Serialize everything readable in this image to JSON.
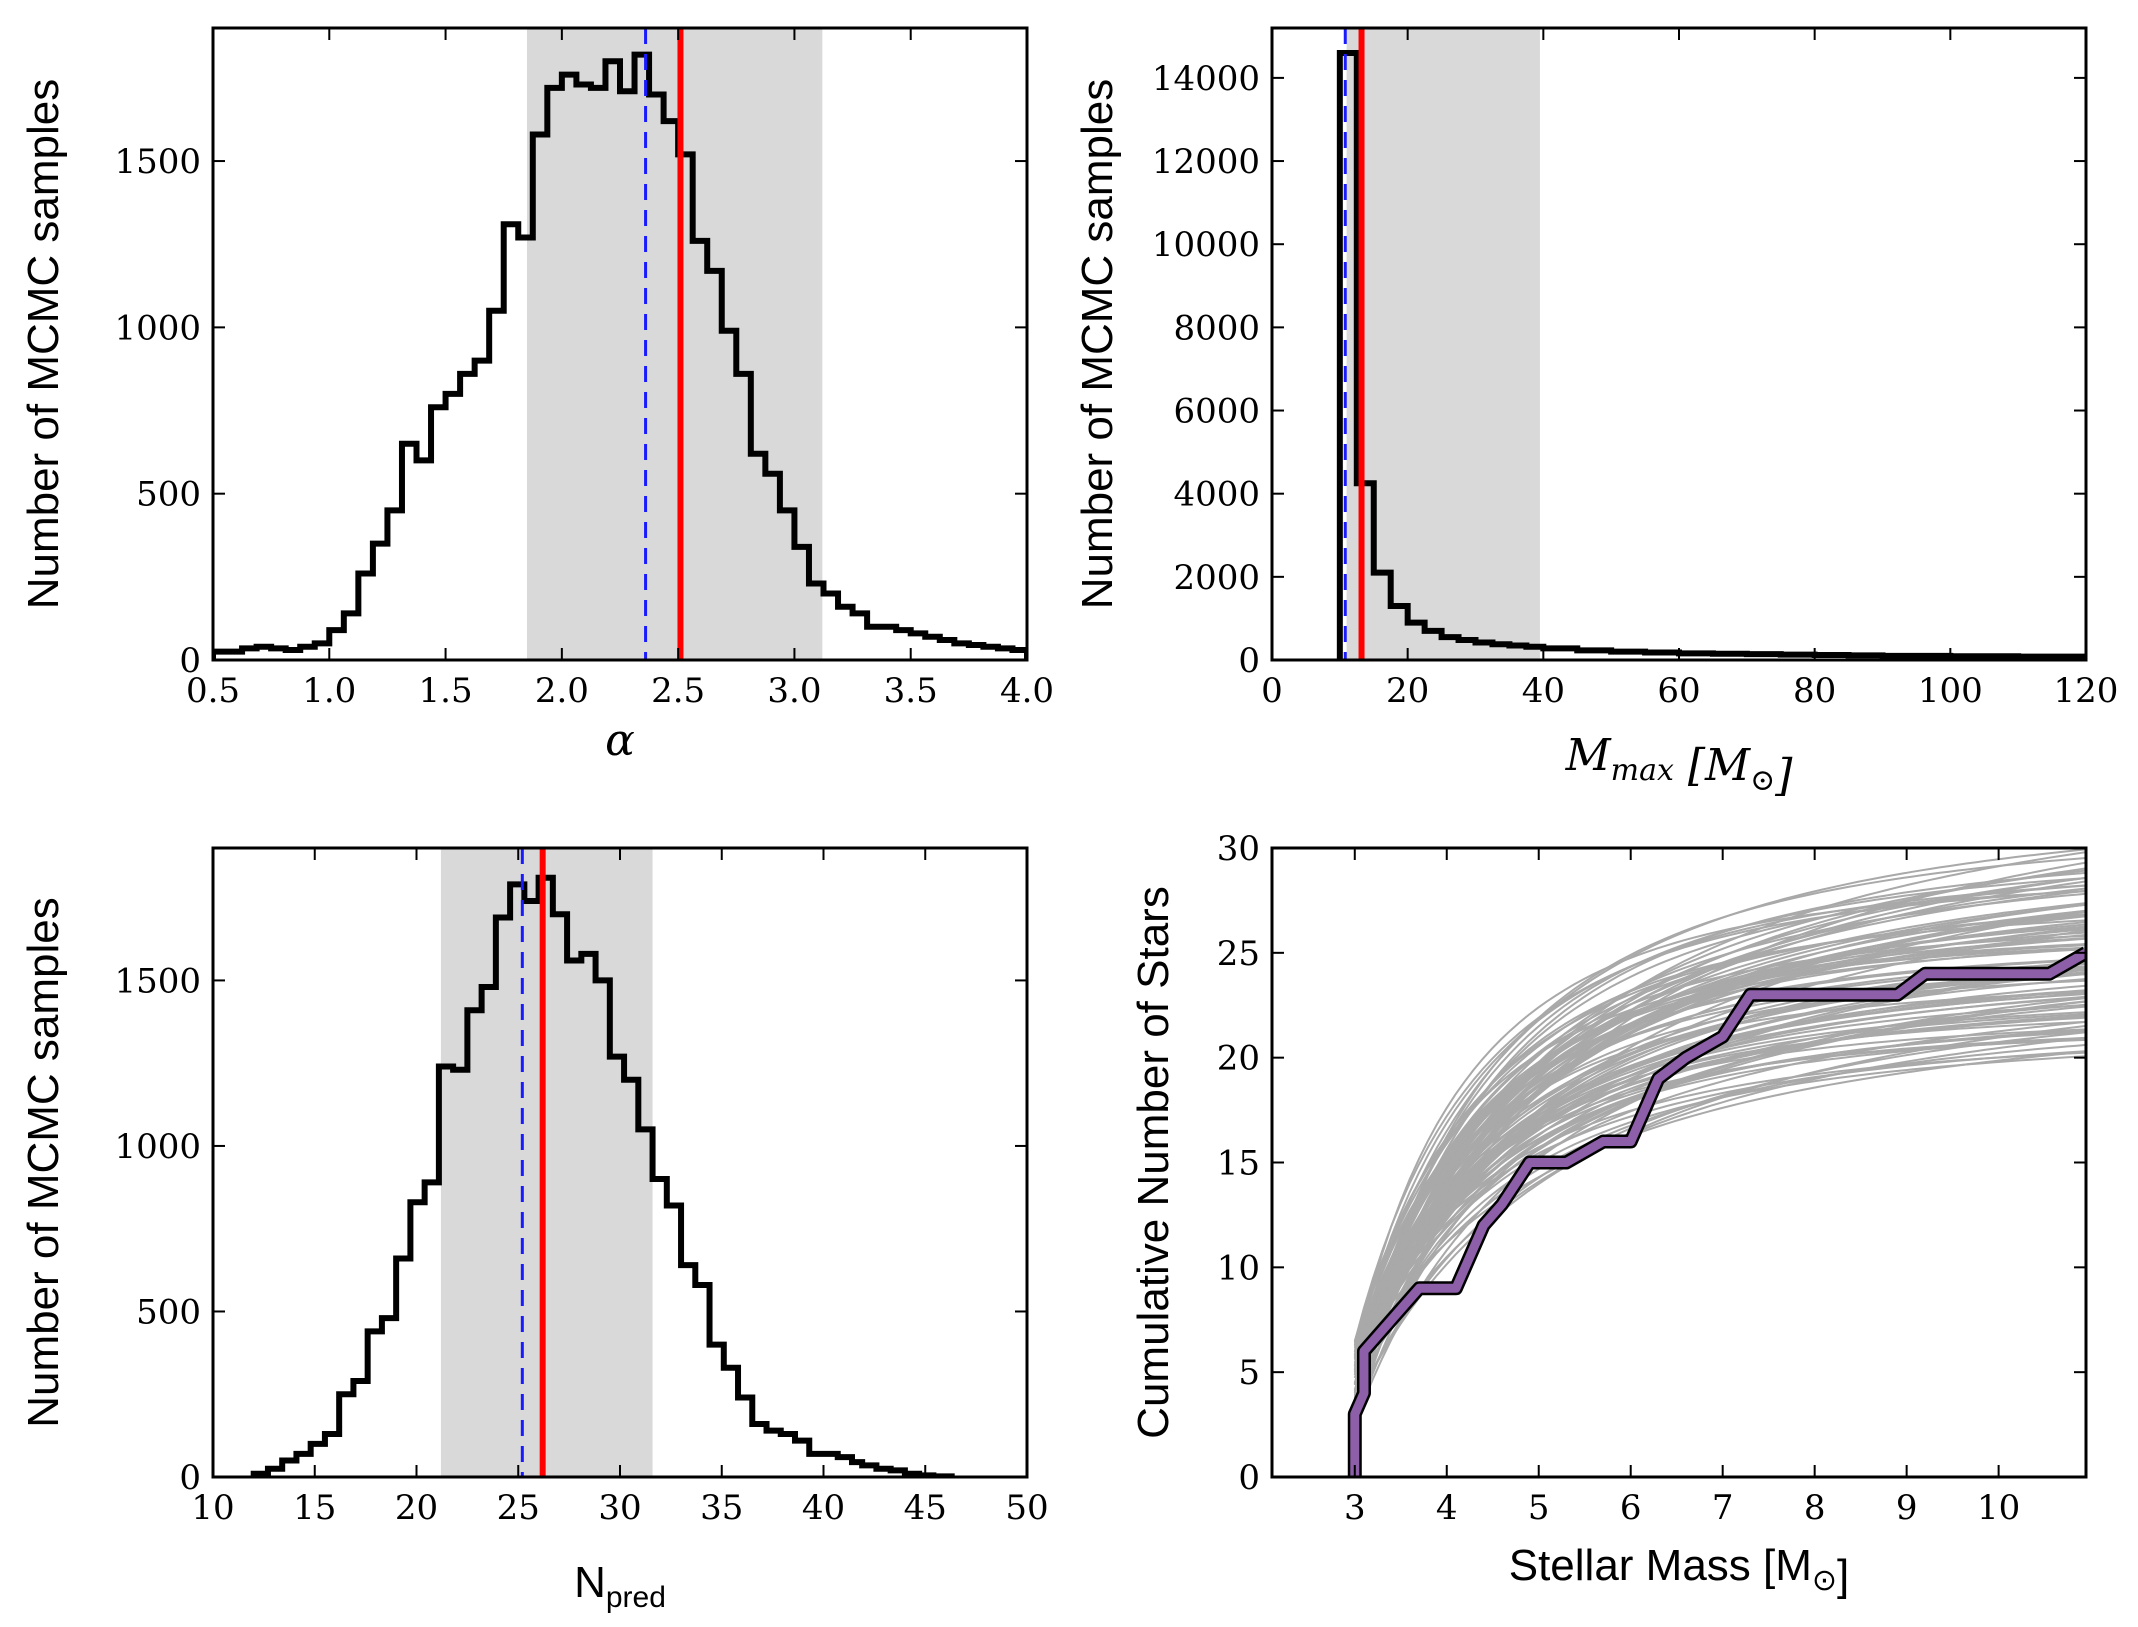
{
  "colors": {
    "hist": "#000000",
    "shade": "#d9d9d9",
    "blue_line": "#1a1aff",
    "red_line": "#ff0000",
    "observed": "#8c5fa8",
    "samples": "#a9a9a9"
  },
  "chart_data": [
    {
      "id": "alpha",
      "type": "histogram",
      "xlabel": "α",
      "ylabel": "Number of MCMC samples",
      "xlim": [
        0.5,
        4.0
      ],
      "ylim": [
        0,
        1900
      ],
      "xticks": [
        0.5,
        1.0,
        1.5,
        2.0,
        2.5,
        3.0,
        3.5,
        4.0
      ],
      "xtick_labels": [
        "0.5",
        "1.0",
        "1.5",
        "2.0",
        "2.5",
        "3.0",
        "3.5",
        "4.0"
      ],
      "yticks": [
        0,
        500,
        1000,
        1500
      ],
      "ytick_labels": [
        "0",
        "500",
        "1000",
        "1500"
      ],
      "shade": [
        1.85,
        3.12
      ],
      "blue_dashed": 2.36,
      "red": 2.51,
      "bin_edges": [
        0.5,
        0.5625,
        0.625,
        0.6875,
        0.75,
        0.8125,
        0.875,
        0.9375,
        1.0,
        1.0625,
        1.125,
        1.1875,
        1.25,
        1.3125,
        1.375,
        1.4375,
        1.5,
        1.5625,
        1.625,
        1.6875,
        1.75,
        1.8125,
        1.875,
        1.9375,
        2.0,
        2.0625,
        2.125,
        2.1875,
        2.25,
        2.3125,
        2.375,
        2.4375,
        2.5,
        2.5625,
        2.625,
        2.6875,
        2.75,
        2.8125,
        2.875,
        2.9375,
        3.0,
        3.0625,
        3.125,
        3.1875,
        3.25,
        3.3125,
        3.375,
        3.4375,
        3.5,
        3.5625,
        3.625,
        3.6875,
        3.75,
        3.8125,
        3.875,
        3.9375,
        4.0
      ],
      "counts": [
        25,
        25,
        35,
        40,
        35,
        30,
        40,
        50,
        90,
        140,
        260,
        350,
        450,
        650,
        600,
        760,
        800,
        860,
        900,
        1050,
        1310,
        1270,
        1580,
        1720,
        1760,
        1730,
        1720,
        1800,
        1710,
        1820,
        1700,
        1620,
        1520,
        1260,
        1170,
        990,
        860,
        620,
        560,
        450,
        340,
        230,
        200,
        160,
        140,
        100,
        100,
        90,
        80,
        70,
        60,
        50,
        45,
        40,
        35,
        30
      ]
    },
    {
      "id": "mmax",
      "type": "histogram",
      "xlabel": "M_max [M_⊙]",
      "ylabel": "Number of MCMC samples",
      "xlim": [
        0,
        120
      ],
      "ylim": [
        0,
        15200
      ],
      "xticks": [
        0,
        20,
        40,
        60,
        80,
        100,
        120
      ],
      "xtick_labels": [
        "0",
        "20",
        "40",
        "60",
        "80",
        "100",
        "120"
      ],
      "yticks": [
        0,
        2000,
        4000,
        6000,
        8000,
        10000,
        12000,
        14000
      ],
      "ytick_labels": [
        "0",
        "2000",
        "4000",
        "6000",
        "8000",
        "10000",
        "12000",
        "14000"
      ],
      "shade": [
        11,
        39.5
      ],
      "blue_dashed": 10.8,
      "red": 13.2,
      "bin_edges": [
        10,
        12.5,
        15,
        17.5,
        20,
        22.5,
        25,
        27.5,
        30,
        32.5,
        35,
        37.5,
        40,
        45,
        50,
        55,
        60,
        65,
        70,
        75,
        80,
        85,
        90,
        95,
        100,
        105,
        110,
        115,
        120
      ],
      "counts": [
        14600,
        4250,
        2100,
        1300,
        900,
        700,
        550,
        480,
        420,
        380,
        350,
        320,
        280,
        230,
        200,
        180,
        160,
        150,
        140,
        130,
        120,
        110,
        100,
        100,
        90,
        90,
        80,
        80
      ]
    },
    {
      "id": "npred",
      "type": "histogram",
      "xlabel": "N_pred",
      "ylabel": "Number of MCMC samples",
      "xlim": [
        10,
        50
      ],
      "ylim": [
        0,
        1900
      ],
      "xticks": [
        10,
        15,
        20,
        25,
        30,
        35,
        40,
        45,
        50
      ],
      "xtick_labels": [
        "10",
        "15",
        "20",
        "25",
        "30",
        "35",
        "40",
        "45",
        "50"
      ],
      "yticks": [
        0,
        500,
        1000,
        1500
      ],
      "ytick_labels": [
        "0",
        "500",
        "1000",
        "1500"
      ],
      "shade": [
        21.2,
        31.6
      ],
      "blue_dashed": 25.2,
      "red": 26.2,
      "bin_edges": [
        12,
        12.7,
        13.4,
        14.1,
        14.8,
        15.5,
        16.2,
        16.9,
        17.6,
        18.3,
        19.0,
        19.7,
        20.4,
        21.1,
        21.8,
        22.5,
        23.2,
        23.9,
        24.6,
        25.3,
        26.0,
        26.7,
        27.4,
        28.1,
        28.8,
        29.5,
        30.2,
        30.9,
        31.6,
        32.3,
        33.0,
        33.7,
        34.4,
        35.1,
        35.8,
        36.5,
        37.2,
        37.9,
        38.6,
        39.3,
        40.0,
        40.7,
        41.4,
        41.9,
        42.6,
        43.3,
        44.0,
        44.7,
        45.4,
        46.3
      ],
      "counts": [
        10,
        25,
        50,
        70,
        100,
        130,
        250,
        290,
        440,
        480,
        660,
        830,
        890,
        1240,
        1230,
        1410,
        1480,
        1690,
        1790,
        1740,
        1810,
        1700,
        1560,
        1580,
        1500,
        1270,
        1200,
        1050,
        900,
        820,
        640,
        580,
        400,
        330,
        240,
        160,
        140,
        130,
        110,
        70,
        70,
        60,
        45,
        35,
        25,
        20,
        10,
        5,
        2
      ]
    },
    {
      "id": "cumulative",
      "type": "line",
      "xlabel": "Stellar Mass [M_⊙]",
      "ylabel": "Cumulative Number of Stars",
      "xlim": [
        2.1,
        10.95
      ],
      "ylim": [
        0,
        30
      ],
      "xticks": [
        3,
        4,
        5,
        6,
        7,
        8,
        9,
        10
      ],
      "xtick_labels": [
        "3",
        "4",
        "5",
        "6",
        "7",
        "8",
        "9",
        "10"
      ],
      "yticks": [
        0,
        5,
        10,
        15,
        20,
        25,
        30
      ],
      "ytick_labels": [
        "0",
        "5",
        "10",
        "15",
        "20",
        "25",
        "30"
      ],
      "observed": {
        "x": [
          3.0,
          3.0,
          3.1,
          3.1,
          3.7,
          4.1,
          4.4,
          4.6,
          4.9,
          5.3,
          5.7,
          6.0,
          6.3,
          6.6,
          7.0,
          7.3,
          8.0,
          8.9,
          9.2,
          10.0,
          10.55,
          10.95
        ],
        "y": [
          0,
          3,
          4,
          6,
          9,
          9,
          12,
          13,
          15,
          15,
          16,
          16,
          19,
          20,
          21,
          23,
          23,
          23,
          24,
          24,
          24,
          25
        ]
      },
      "model_samples": {
        "count": 100,
        "n_at_3_min": 2.5,
        "n_at_3_max": 6.5,
        "n_total_min": 20,
        "n_total_max": 30,
        "x_start": 3.0,
        "x_end": 10.95
      }
    }
  ]
}
